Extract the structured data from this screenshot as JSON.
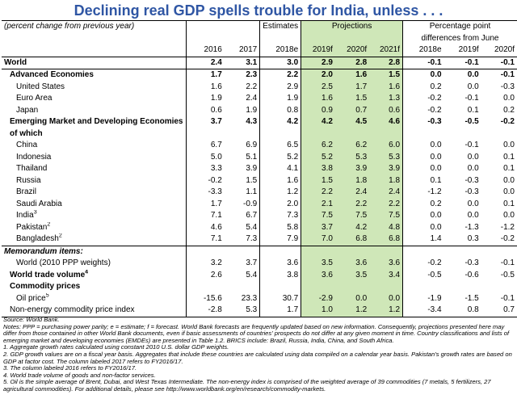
{
  "title": "Declining real GDP spells trouble for India, unless  . . .",
  "header": {
    "caption": "(percent change from previous year)",
    "estimates": "Estimates",
    "projections": "Projections",
    "diff_line1": "Percentage point",
    "diff_line2": "differences from June",
    "years": [
      "2016",
      "2017",
      "2018e",
      "2019f",
      "2020f",
      "2021f",
      "2018e",
      "2019f",
      "2020f"
    ]
  },
  "rows": [
    {
      "label": "World",
      "values": [
        "2.4",
        "3.1",
        "3.0",
        "2.9",
        "2.8",
        "2.8",
        "-0.1",
        "-0.1",
        "-0.1"
      ]
    },
    {
      "label": "Advanced Economies",
      "values": [
        "1.7",
        "2.3",
        "2.2",
        "2.0",
        "1.6",
        "1.5",
        "0.0",
        "0.0",
        "-0.1"
      ]
    },
    {
      "label": "United States",
      "values": [
        "1.6",
        "2.2",
        "2.9",
        "2.5",
        "1.7",
        "1.6",
        "0.2",
        "0.0",
        "-0.3"
      ]
    },
    {
      "label": "Euro Area",
      "values": [
        "1.9",
        "2.4",
        "1.9",
        "1.6",
        "1.5",
        "1.3",
        "-0.2",
        "-0.1",
        "0.0"
      ]
    },
    {
      "label": "Japan",
      "values": [
        "0.6",
        "1.9",
        "0.8",
        "0.9",
        "0.7",
        "0.6",
        "-0.2",
        "0.1",
        "0.2"
      ]
    },
    {
      "label": "Emerging Market and Developing Economies",
      "values": [
        "3.7",
        "4.3",
        "4.2",
        "4.2",
        "4.5",
        "4.6",
        "-0.3",
        "-0.5",
        "-0.2"
      ]
    },
    {
      "label": "of which",
      "values": [
        "",
        "",
        "",
        "",
        "",
        "",
        "",
        "",
        ""
      ]
    },
    {
      "label": "China",
      "values": [
        "6.7",
        "6.9",
        "6.5",
        "6.2",
        "6.2",
        "6.0",
        "0.0",
        "-0.1",
        "0.0"
      ]
    },
    {
      "label": "Indonesia",
      "values": [
        "5.0",
        "5.1",
        "5.2",
        "5.2",
        "5.3",
        "5.3",
        "0.0",
        "0.0",
        "0.1"
      ]
    },
    {
      "label": "Thailand",
      "values": [
        "3.3",
        "3.9",
        "4.1",
        "3.8",
        "3.9",
        "3.9",
        "0.0",
        "0.0",
        "0.1"
      ]
    },
    {
      "label": "Russia",
      "values": [
        "-0.2",
        "1.5",
        "1.6",
        "1.5",
        "1.8",
        "1.8",
        "0.1",
        "-0.3",
        "0.0"
      ]
    },
    {
      "label": "Brazil",
      "values": [
        "-3.3",
        "1.1",
        "1.2",
        "2.2",
        "2.4",
        "2.4",
        "-1.2",
        "-0.3",
        "0.0"
      ]
    },
    {
      "label": "Saudi Arabia",
      "values": [
        "1.7",
        "-0.9",
        "2.0",
        "2.1",
        "2.2",
        "2.2",
        "0.2",
        "0.0",
        "0.1"
      ]
    },
    {
      "label": "India",
      "sup": "3",
      "values": [
        "7.1",
        "6.7",
        "7.3",
        "7.5",
        "7.5",
        "7.5",
        "0.0",
        "0.0",
        "0.0"
      ]
    },
    {
      "label": "Pakistan",
      "sup": "2",
      "values": [
        "4.6",
        "5.4",
        "5.8",
        "3.7",
        "4.2",
        "4.8",
        "0.0",
        "-1.3",
        "-1.2"
      ]
    },
    {
      "label": "Bangladesh",
      "sup": "2",
      "values": [
        "7.1",
        "7.3",
        "7.9",
        "7.0",
        "6.8",
        "6.8",
        "1.4",
        "0.3",
        "-0.2"
      ]
    },
    {
      "label": "Memorandum items:",
      "values": [
        "",
        "",
        "",
        "",
        "",
        "",
        "",
        "",
        ""
      ]
    },
    {
      "label": "World (2010 PPP weights)",
      "values": [
        "3.2",
        "3.7",
        "3.6",
        "3.5",
        "3.6",
        "3.6",
        "-0.2",
        "-0.3",
        "-0.1"
      ]
    },
    {
      "label": "World trade volume",
      "sup": "4",
      "values": [
        "2.6",
        "5.4",
        "3.8",
        "3.6",
        "3.5",
        "3.4",
        "-0.5",
        "-0.6",
        "-0.5"
      ]
    },
    {
      "label": "Commodity prices",
      "values": [
        "",
        "",
        "",
        "",
        "",
        "",
        "",
        "",
        ""
      ]
    },
    {
      "label": "Oil price",
      "sup": "5",
      "values": [
        "-15.6",
        "23.3",
        "30.7",
        "-2.9",
        "0.0",
        "0.0",
        "-1.9",
        "-1.5",
        "-0.1"
      ]
    },
    {
      "label": "Non-energy commodity price index",
      "values": [
        "-2.8",
        "5.3",
        "1.7",
        "1.0",
        "1.2",
        "1.2",
        "-3.4",
        "0.8",
        "0.7"
      ]
    }
  ],
  "notes": [
    "Source: World Bank.",
    "Notes: PPP = purchasing power parity; e = estimate; f = forecast. World Bank forecasts are frequently updated based on new information. Consequently, projections presented here may differ from those contained in other World Bank documents, even if basic assessments of countries' prospects do not differ at any given moment in time. Country classifications and lists of emerging market and developing economies (EMDEs) are presented in Table 1.2. BRICS include: Brazil, Russia, India, China, and South Africa.",
    "1. Aggregate growth rates calculated using constant 2010 U.S. dollar GDP weights.",
    "2. GDP growth values are on a fiscal year basis. Aggregates that include these countries are calculated using data compiled on a calendar year basis. Pakistan's growth rates are based on GDP at factor cost. The column labeled 2017 refers to FY2016/17.",
    "3. The column labeled 2016 refers to FY2016/17.",
    "4. World trade volume of goods and non-factor services.",
    "5. Oil is the simple average of Brent, Dubai, and West Texas Intermediate. The non-energy index is comprised of the weighted average of 39 commodities (7 metals, 5 fertilizers, 27 agricultural commodities). For additional details, please see http://www.worldbank.org/en/research/commodity-markets."
  ]
}
